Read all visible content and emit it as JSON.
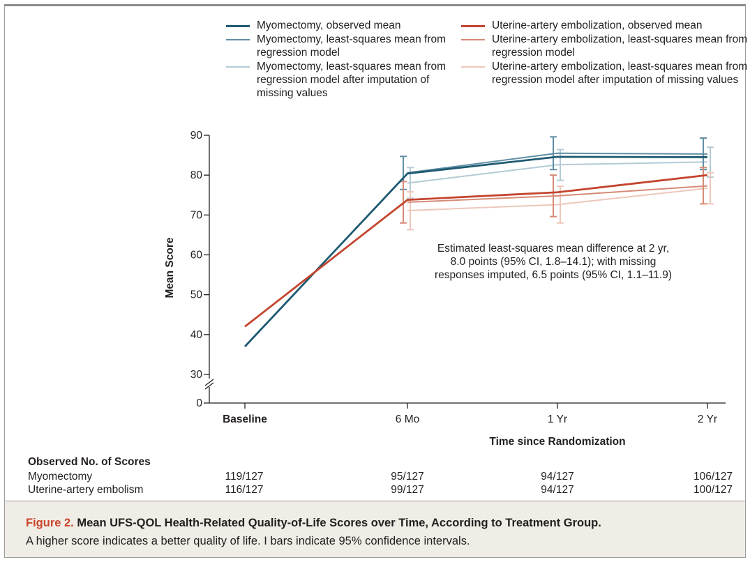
{
  "figure": {
    "number": "Figure 2.",
    "title": "Mean UFS-QOL Health-Related Quality-of-Life Scores over Time, According to Treatment Group.",
    "note": "A higher score indicates a better quality of life. I bars indicate 95% confidence intervals."
  },
  "legend": {
    "left": [
      {
        "label": "Myomectomy, observed mean",
        "color": "#1e5a72",
        "weight": "heavy"
      },
      {
        "label": "Myomectomy, least-squares mean from regression model",
        "color": "#5f8ea4",
        "weight": "light"
      },
      {
        "label": "Myomectomy, least-squares mean from regression model after imputation of missing values",
        "color": "#b3cad5",
        "weight": "light"
      }
    ],
    "right": [
      {
        "label": "Uterine-artery embolization, observed mean",
        "color": "#c4442e",
        "weight": "heavy"
      },
      {
        "label": "Uterine-artery embolization, least-squares mean from regression model",
        "color": "#d68a76",
        "weight": "light"
      },
      {
        "label": "Uterine-artery embolization, least-squares mean from regression model after imputation of missing values",
        "color": "#ecc7ba",
        "weight": "light"
      }
    ]
  },
  "chart_data": {
    "type": "line",
    "ylabel": "Mean Score",
    "xlabel": "Time since Randomization",
    "x_categories": [
      "Baseline",
      "6 Mo",
      "1 Yr",
      "2 Yr"
    ],
    "yticks": [
      0,
      30,
      40,
      50,
      60,
      70,
      80,
      90
    ],
    "ylim": [
      30,
      90
    ],
    "axis_break": true,
    "annotation": "Estimated least-squares mean difference at 2 yr, 8.0 points (95% CI, 1.8–14.1); with missing responses imputed, 6.5 points (95% CI, 1.1–11.9)",
    "series": [
      {
        "name": "Myomectomy, observed mean",
        "color": "#1e5a72",
        "width": 2.8,
        "points": [
          {
            "x": "Baseline",
            "y": 37
          },
          {
            "x": "6 Mo",
            "y": 80.4
          },
          {
            "x": "1 Yr",
            "y": 84.6
          },
          {
            "x": "2 Yr",
            "y": 84.5
          }
        ]
      },
      {
        "name": "Myomectomy, least-squares mean from regression model",
        "color": "#5f8ea4",
        "width": 2,
        "points": [
          {
            "x": "6 Mo",
            "y": 80.6,
            "lo": 76.4,
            "hi": 84.7
          },
          {
            "x": "1 Yr",
            "y": 85.5,
            "lo": 81.4,
            "hi": 89.6
          },
          {
            "x": "2 Yr",
            "y": 85.3,
            "lo": 81.4,
            "hi": 89.3
          }
        ]
      },
      {
        "name": "Myomectomy, least-squares mean from regression model after imputation of missing values",
        "color": "#b3cad5",
        "width": 2,
        "points": [
          {
            "x": "6 Mo",
            "y": 78.0,
            "lo": 74.2,
            "hi": 81.9
          },
          {
            "x": "1 Yr",
            "y": 82.6,
            "lo": 78.7,
            "hi": 86.4
          },
          {
            "x": "2 Yr",
            "y": 83.3,
            "lo": 79.5,
            "hi": 87.0
          }
        ]
      },
      {
        "name": "Uterine-artery embolization, observed mean",
        "color": "#c4442e",
        "width": 2.8,
        "points": [
          {
            "x": "Baseline",
            "y": 42
          },
          {
            "x": "6 Mo",
            "y": 73.8
          },
          {
            "x": "1 Yr",
            "y": 75.7
          },
          {
            "x": "2 Yr",
            "y": 80.0
          }
        ]
      },
      {
        "name": "Uterine-artery embolization, least-squares mean from regression model",
        "color": "#d68a76",
        "width": 2,
        "points": [
          {
            "x": "6 Mo",
            "y": 73.2,
            "lo": 68.0,
            "hi": 78.4
          },
          {
            "x": "1 Yr",
            "y": 74.8,
            "lo": 69.6,
            "hi": 80.0
          },
          {
            "x": "2 Yr",
            "y": 77.3,
            "lo": 72.8,
            "hi": 81.9
          }
        ]
      },
      {
        "name": "Uterine-artery embolization, least-squares mean from regression model after imputation of missing values",
        "color": "#ecc7ba",
        "width": 2,
        "points": [
          {
            "x": "6 Mo",
            "y": 71.1,
            "lo": 66.3,
            "hi": 75.8
          },
          {
            "x": "1 Yr",
            "y": 72.6,
            "lo": 68.0,
            "hi": 77.2
          },
          {
            "x": "2 Yr",
            "y": 76.7,
            "lo": 72.8,
            "hi": 80.6
          }
        ]
      }
    ]
  },
  "counts": {
    "header": "Observed No. of Scores",
    "rows": [
      {
        "label": "Myomectomy",
        "values": [
          "119/127",
          "95/127",
          "94/127",
          "106/127"
        ]
      },
      {
        "label": "Uterine-artery embolism",
        "values": [
          "116/127",
          "99/127",
          "94/127",
          "100/127"
        ]
      }
    ]
  }
}
